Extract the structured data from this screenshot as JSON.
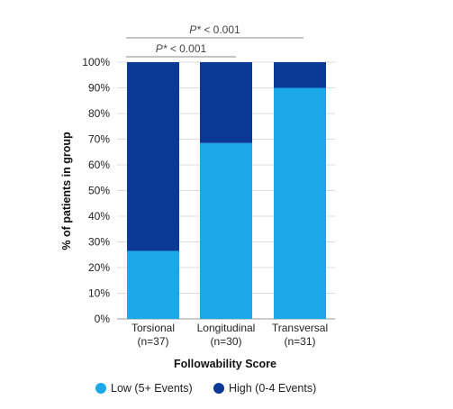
{
  "chart_data": {
    "type": "bar",
    "stacked": true,
    "categories": [
      "Torsional",
      "Longitudinal",
      "Transversal"
    ],
    "category_counts": [
      "(n=37)",
      "(n=30)",
      "(n=31)"
    ],
    "series": [
      {
        "name": "Low (5+ Events)",
        "color": "#1ba7e8",
        "values": [
          26.5,
          68.5,
          90
        ]
      },
      {
        "name": "High (0-4 Events)",
        "color": "#0a3a96",
        "values": [
          73.5,
          31.5,
          10
        ]
      }
    ],
    "xlabel": "Followability Score",
    "ylabel": "% of patients in group",
    "ylim": [
      0,
      100
    ],
    "yticks": [
      "0%",
      "10%",
      "20%",
      "30%",
      "40%",
      "50%",
      "60%",
      "70%",
      "80%",
      "90%",
      "100%"
    ],
    "grid": true,
    "legend_position": "bottom",
    "annotations": [
      {
        "p_label": "P*",
        "text": " < 0.001",
        "between": [
          "Torsional",
          "Longitudinal"
        ]
      },
      {
        "p_label": "P*",
        "text": " < 0.001",
        "between": [
          "Torsional",
          "Transversal"
        ]
      }
    ]
  }
}
